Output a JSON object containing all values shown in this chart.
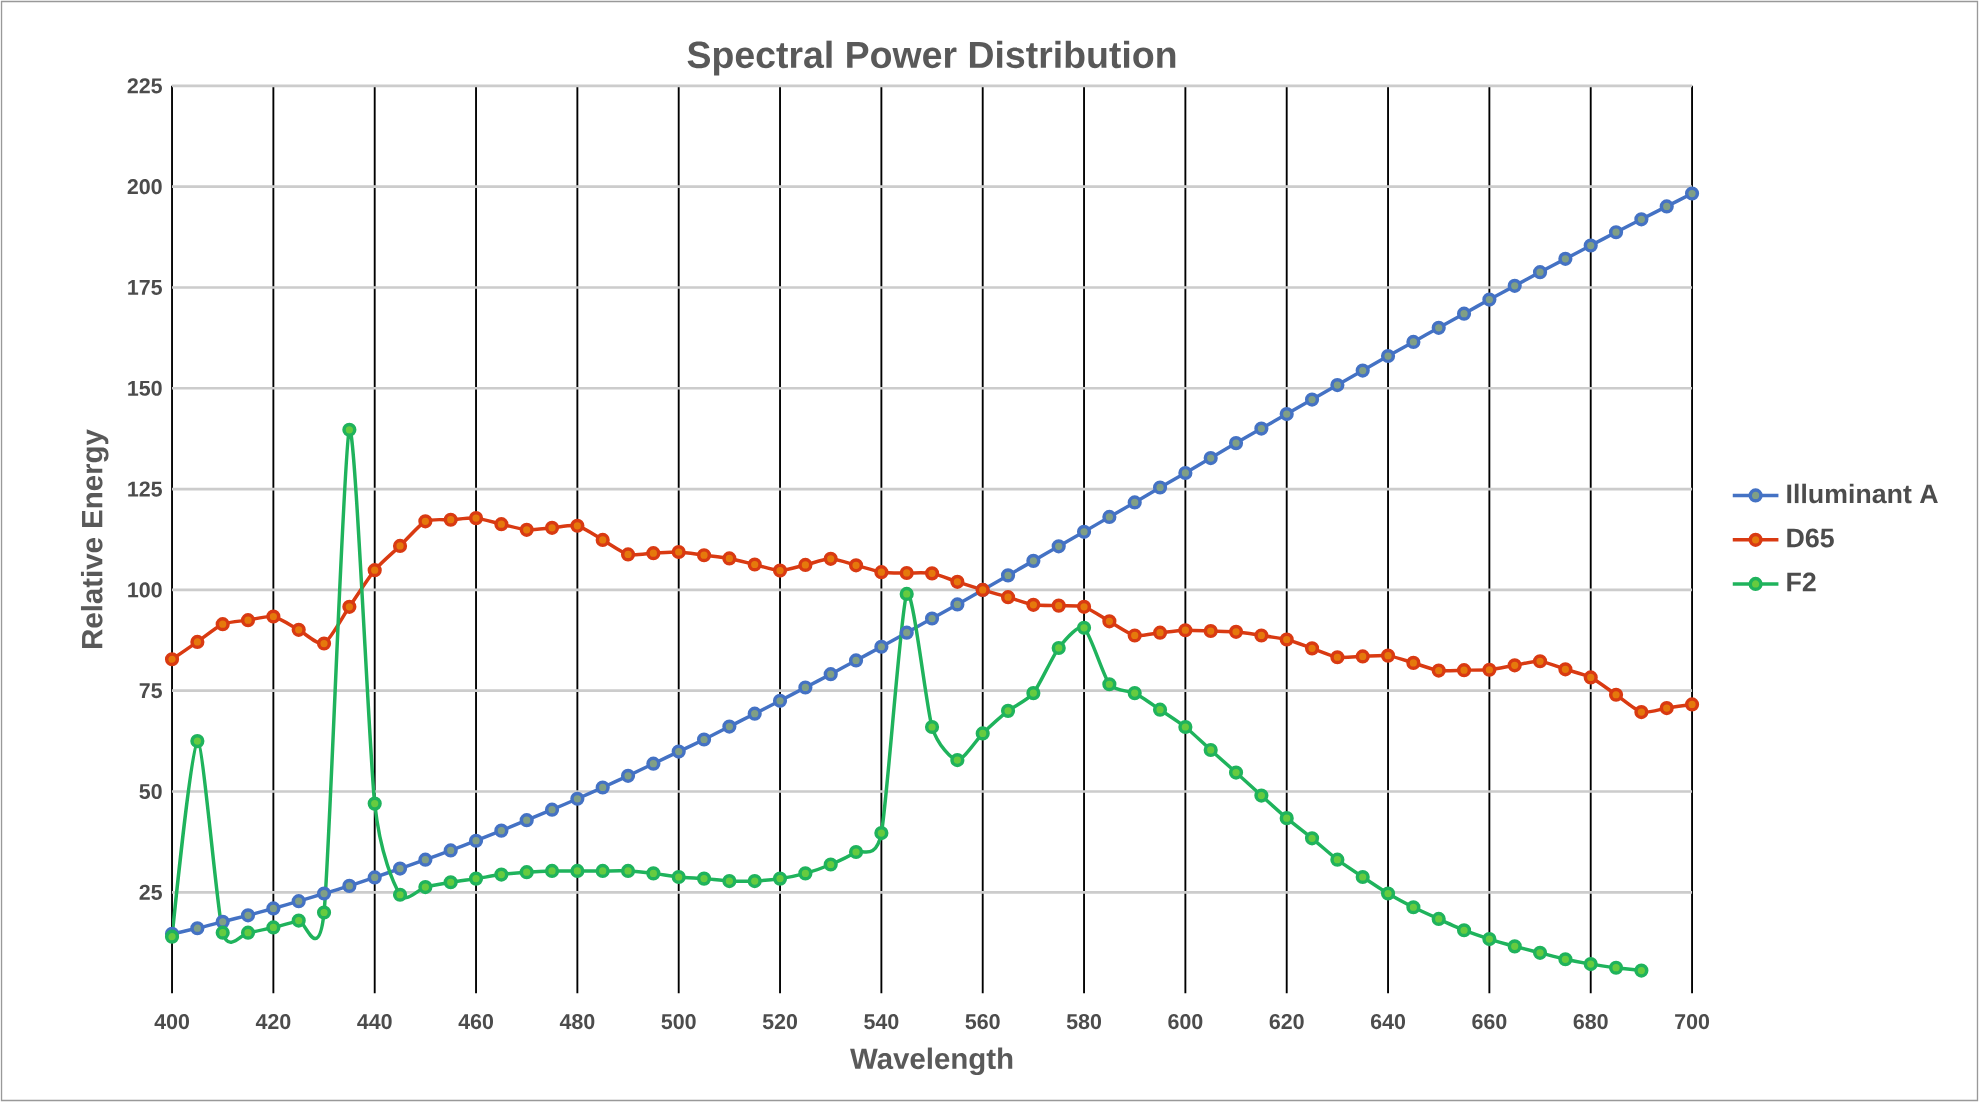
{
  "chart_data": {
    "type": "line",
    "title": "Spectral Power Distribution",
    "xlabel": "Wavelength",
    "ylabel": "Relative Energy",
    "x": [
      400,
      405,
      410,
      415,
      420,
      425,
      430,
      435,
      440,
      445,
      450,
      455,
      460,
      465,
      470,
      475,
      480,
      485,
      490,
      495,
      500,
      505,
      510,
      515,
      520,
      525,
      530,
      535,
      540,
      545,
      550,
      555,
      560,
      565,
      570,
      575,
      580,
      585,
      590,
      595,
      600,
      605,
      610,
      615,
      620,
      625,
      630,
      635,
      640,
      645,
      650,
      655,
      660,
      665,
      670,
      675,
      680,
      685,
      690,
      695,
      700
    ],
    "series": [
      {
        "name": "Illuminant A",
        "color": "#4472c4",
        "values": [
          14.7,
          16.1,
          17.7,
          19.3,
          21.0,
          22.8,
          24.7,
          26.6,
          28.7,
          30.9,
          33.1,
          35.4,
          37.8,
          40.3,
          42.9,
          45.5,
          48.2,
          51.0,
          53.9,
          56.9,
          59.9,
          62.9,
          66.1,
          69.3,
          72.5,
          75.8,
          79.1,
          82.5,
          85.9,
          89.4,
          92.9,
          96.4,
          100.0,
          103.6,
          107.2,
          110.8,
          114.4,
          118.1,
          121.7,
          125.4,
          129.0,
          132.7,
          136.4,
          140.0,
          143.6,
          147.2,
          150.8,
          154.4,
          158.0,
          161.5,
          165.0,
          168.5,
          172.0,
          175.4,
          178.8,
          182.1,
          185.4,
          188.7,
          191.9,
          195.1,
          198.3
        ]
      },
      {
        "name": "D65",
        "color": "#d93a12",
        "values": [
          82.8,
          87.1,
          91.5,
          92.5,
          93.4,
          90.1,
          86.7,
          95.8,
          104.9,
          110.9,
          117.0,
          117.4,
          117.8,
          116.3,
          114.9,
          115.4,
          115.9,
          112.4,
          108.8,
          109.1,
          109.4,
          108.6,
          107.8,
          106.3,
          104.8,
          106.2,
          107.7,
          106.1,
          104.4,
          104.2,
          104.1,
          102.0,
          100.0,
          98.2,
          96.3,
          96.1,
          95.8,
          92.2,
          88.7,
          89.4,
          90.0,
          89.8,
          89.6,
          88.7,
          87.7,
          85.5,
          83.3,
          83.5,
          83.7,
          81.9,
          80.0,
          80.1,
          80.2,
          81.3,
          82.3,
          80.3,
          78.3,
          74.0,
          69.7,
          70.7,
          71.6
        ]
      },
      {
        "name": "F2",
        "color": "#1fb35c",
        "values": [
          14,
          62.5,
          15,
          15,
          16.3,
          18,
          20,
          139.7,
          47,
          24.4,
          26.3,
          27.5,
          28.4,
          29.4,
          30,
          30.3,
          30.3,
          30.3,
          30.3,
          29.7,
          28.8,
          28.4,
          27.8,
          27.8,
          28.4,
          29.7,
          31.9,
          35,
          39.7,
          99,
          66,
          57.8,
          64.4,
          70,
          74.4,
          85.6,
          90.6,
          76.6,
          74.4,
          70.3,
          66,
          60.3,
          54.7,
          49,
          43.4,
          38.4,
          33.1,
          28.8,
          24.7,
          21.3,
          18.4,
          15.6,
          13.4,
          11.6,
          10,
          8.4,
          7.2,
          6.3,
          5.6,
          null,
          null
        ]
      }
    ],
    "xlim": [
      400,
      700
    ],
    "xticks": [
      400,
      420,
      440,
      460,
      480,
      500,
      520,
      540,
      560,
      580,
      600,
      620,
      640,
      660,
      680,
      700
    ],
    "ylim": [
      0,
      225
    ],
    "yticks": [
      25,
      50,
      75,
      100,
      125,
      150,
      175,
      200,
      225
    ],
    "grid": true,
    "legend": "right",
    "marker": "circle",
    "line_style": "solid"
  }
}
